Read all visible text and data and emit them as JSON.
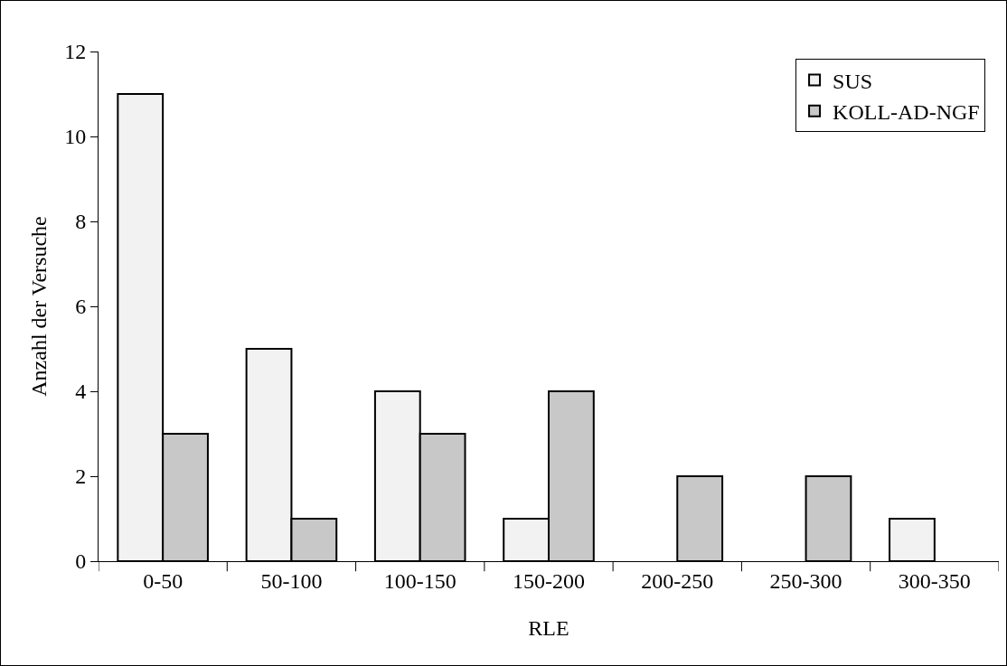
{
  "chart_data": {
    "type": "bar",
    "xlabel": "RLE",
    "ylabel": "Anzahl der Versuche",
    "categories": [
      "0-50",
      "50-100",
      "100-150",
      "150-200",
      "200-250",
      "250-300",
      "300-350"
    ],
    "series": [
      {
        "name": "SUS",
        "color": "#f2f2f2",
        "values": [
          11,
          5,
          4,
          1,
          null,
          null,
          1
        ]
      },
      {
        "name": "KOLL-AD-NGF",
        "color": "#c8c8c8",
        "values": [
          3,
          1,
          3,
          4,
          2,
          2,
          null
        ]
      }
    ],
    "ylim": [
      0,
      12
    ],
    "yticks": [
      0,
      2,
      4,
      6,
      8,
      10,
      12
    ],
    "grid": false,
    "legend": "top right"
  }
}
